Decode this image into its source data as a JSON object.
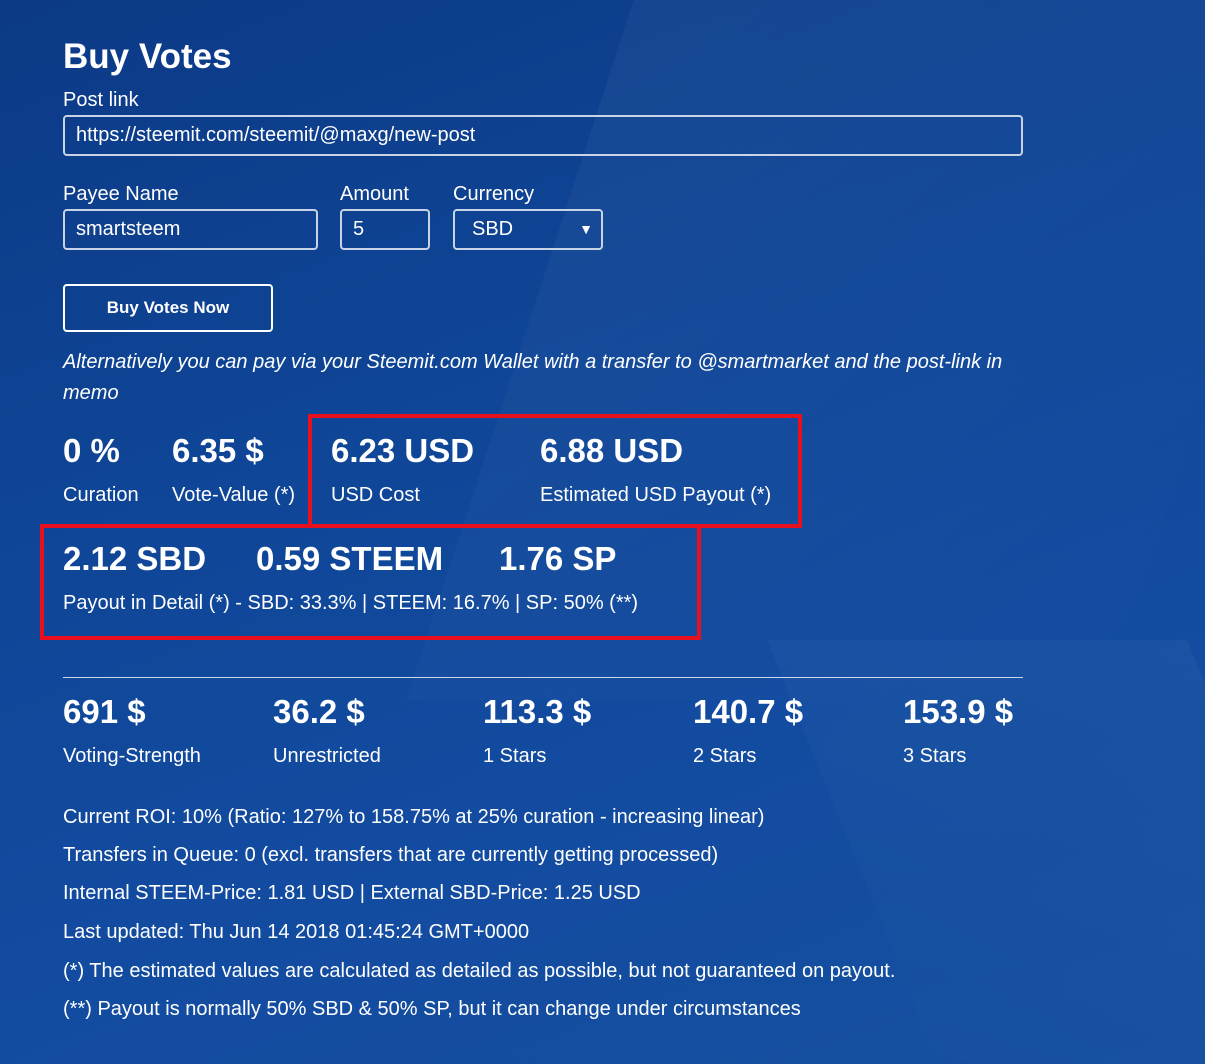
{
  "title": "Buy Votes",
  "form": {
    "post_link_label": "Post link",
    "post_link_value": "https://steemit.com/steemit/@maxg/new-post",
    "payee_label": "Payee Name",
    "payee_value": "smartsteem",
    "amount_label": "Amount",
    "amount_value": "5",
    "currency_label": "Currency",
    "currency_value": "SBD",
    "buy_button_label": "Buy Votes Now"
  },
  "alternative_text": "Alternatively you can pay via your Steemit.com Wallet with a transfer to @smartmarket and the post-link in memo",
  "stats_row1": [
    {
      "value": "0 %",
      "label": "Curation"
    },
    {
      "value": "6.35 $",
      "label": "Vote-Value (*)"
    },
    {
      "value": "6.23 USD",
      "label": "USD Cost"
    },
    {
      "value": "6.88 USD",
      "label": "Estimated USD Payout (*)"
    }
  ],
  "payout_detail": {
    "values": [
      "2.12 SBD",
      "0.59 STEEM",
      "1.76 SP"
    ],
    "label": "Payout in Detail (*) - SBD: 33.3% | STEEM: 16.7% | SP: 50% (**)"
  },
  "stats_row2": [
    {
      "value": "691 $",
      "label": "Voting-Strength"
    },
    {
      "value": "36.2 $",
      "label": "Unrestricted"
    },
    {
      "value": "113.3 $",
      "label": "1 Stars"
    },
    {
      "value": "140.7 $",
      "label": "2 Stars"
    },
    {
      "value": "153.9 $",
      "label": "3 Stars"
    }
  ],
  "info_lines": [
    "Current ROI: 10% (Ratio: 127% to 158.75% at 25% curation - increasing linear)",
    "Transfers in Queue: 0 (excl. transfers that are currently getting processed)",
    "Internal STEEM-Price: 1.81 USD | External SBD-Price: 1.25 USD",
    "Last updated: Thu Jun 14 2018 01:45:24 GMT+0000",
    "(*) The estimated values are calculated as detailed as possible, but not guaranteed on payout.",
    "(**) Payout is normally 50% SBD & 50% SP, but it can change under circumstances"
  ],
  "colors": {
    "highlight_border": "#e8101f",
    "background": "#0f4596"
  }
}
